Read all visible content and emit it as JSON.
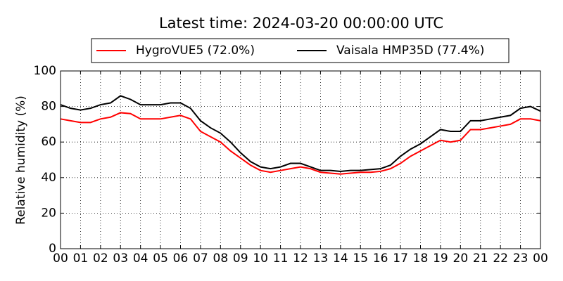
{
  "chart_data": {
    "type": "line",
    "title": "Latest time: 2024-03-20 00:00:00 UTC",
    "ylabel": "Relative humidity (%)",
    "x": [
      0,
      0.5,
      1,
      1.5,
      2,
      2.5,
      3,
      3.5,
      4,
      4.5,
      5,
      5.5,
      6,
      6.5,
      7,
      7.5,
      8,
      8.5,
      9,
      9.5,
      10,
      10.5,
      11,
      11.5,
      12,
      12.5,
      13,
      13.5,
      14,
      14.5,
      15,
      15.5,
      16,
      16.5,
      17,
      17.5,
      18,
      18.5,
      19,
      19.5,
      20,
      20.5,
      21,
      21.5,
      22,
      22.5,
      23,
      23.5,
      24
    ],
    "series": [
      {
        "name": "HygroVUE5 (72.0%)",
        "color": "#ff0000",
        "values": [
          73,
          72,
          71,
          71,
          73,
          74,
          76.5,
          76,
          73,
          73,
          73,
          74,
          75,
          73,
          66,
          63,
          60,
          55,
          51,
          47,
          44,
          43,
          44,
          45,
          46,
          45,
          43,
          42.5,
          42,
          42.5,
          43,
          43,
          43.5,
          45,
          48,
          52,
          55,
          58,
          61,
          60,
          61,
          67,
          67,
          68,
          69,
          70,
          73,
          73,
          72
        ]
      },
      {
        "name": "Vaisala HMP35D (77.4%)",
        "color": "#000000",
        "values": [
          81,
          79,
          78,
          79,
          81,
          82,
          86,
          84,
          81,
          81,
          81,
          82,
          82,
          79,
          72,
          68,
          65,
          60,
          54,
          49,
          46,
          45,
          46,
          48,
          48,
          46,
          44,
          44,
          43.5,
          44,
          44,
          44.5,
          45,
          47,
          52,
          56,
          59,
          63,
          67,
          66,
          66,
          72,
          72,
          73,
          74,
          75,
          79,
          80,
          77.4
        ]
      }
    ],
    "xlim": [
      0,
      24
    ],
    "xticks": [
      {
        "value": 0,
        "label": "00"
      },
      {
        "value": 1,
        "label": "01"
      },
      {
        "value": 2,
        "label": "02"
      },
      {
        "value": 3,
        "label": "03"
      },
      {
        "value": 4,
        "label": "04"
      },
      {
        "value": 5,
        "label": "05"
      },
      {
        "value": 6,
        "label": "06"
      },
      {
        "value": 7,
        "label": "07"
      },
      {
        "value": 8,
        "label": "08"
      },
      {
        "value": 9,
        "label": "09"
      },
      {
        "value": 10,
        "label": "10"
      },
      {
        "value": 11,
        "label": "11"
      },
      {
        "value": 12,
        "label": "12"
      },
      {
        "value": 13,
        "label": "13"
      },
      {
        "value": 14,
        "label": "14"
      },
      {
        "value": 15,
        "label": "15"
      },
      {
        "value": 16,
        "label": "16"
      },
      {
        "value": 17,
        "label": "17"
      },
      {
        "value": 18,
        "label": "18"
      },
      {
        "value": 19,
        "label": "19"
      },
      {
        "value": 20,
        "label": "20"
      },
      {
        "value": 21,
        "label": "21"
      },
      {
        "value": 22,
        "label": "22"
      },
      {
        "value": 23,
        "label": "23"
      },
      {
        "value": 24,
        "label": "00"
      }
    ],
    "ylim": [
      0,
      100
    ],
    "yticks": [
      0,
      20,
      40,
      60,
      80,
      100
    ],
    "grid": true,
    "legend": "top"
  }
}
